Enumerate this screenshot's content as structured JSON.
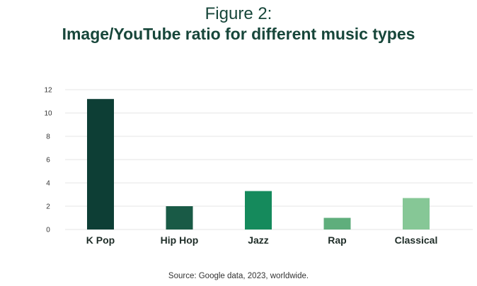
{
  "header": {
    "figure_label": "Figure 2:",
    "title": "Image/YouTube ratio for different music types"
  },
  "source": "Source: Google data, 2023, worldwide.",
  "chart_data": {
    "type": "bar",
    "title": "Image/YouTube ratio for different music types",
    "xlabel": "",
    "ylabel": "",
    "categories": [
      "K Pop",
      "Hip Hop",
      "Jazz",
      "Rap",
      "Classical"
    ],
    "values": [
      11.2,
      2.0,
      3.3,
      1.0,
      2.7
    ],
    "bar_colors": [
      "#0d3e35",
      "#195a46",
      "#158a5c",
      "#5fae7c",
      "#86c796"
    ],
    "ylim": [
      0,
      12
    ],
    "yticks": [
      0,
      2,
      4,
      6,
      8,
      10,
      12
    ],
    "grid": true,
    "legend": "none"
  }
}
